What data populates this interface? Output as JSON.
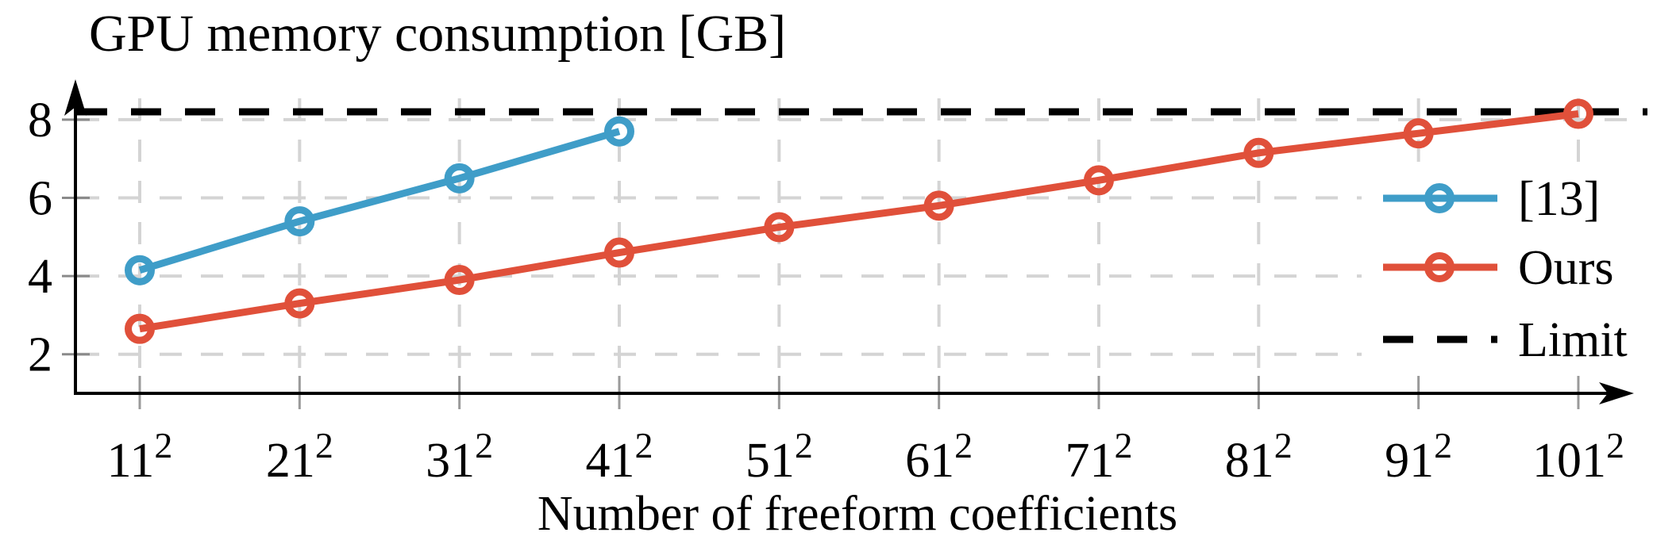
{
  "chart_data": {
    "type": "line",
    "title": "GPU memory consumption [GB]",
    "xlabel": "Number of freeform coefficients",
    "ylabel": "",
    "categories": [
      "11²",
      "21²",
      "31²",
      "41²",
      "51²",
      "61²",
      "71²",
      "81²",
      "91²",
      "101²"
    ],
    "y_ticks": [
      2,
      4,
      6,
      8
    ],
    "ylim": [
      1,
      9
    ],
    "grid": true,
    "legend_position": "inside-right",
    "series": [
      {
        "name": "[13]",
        "color": "#3f9dc8",
        "marker": "open-circle",
        "values": [
          4.15,
          5.4,
          6.5,
          7.7
        ]
      },
      {
        "name": "Ours",
        "color": "#e0503a",
        "marker": "open-circle",
        "values": [
          2.65,
          3.3,
          3.9,
          4.6,
          5.25,
          5.8,
          6.45,
          7.15,
          7.65,
          8.15
        ]
      }
    ],
    "limit_line": {
      "name": "Limit",
      "value": 8.2,
      "color": "#000000",
      "style": "dashed"
    }
  },
  "colors": {
    "background": "#ffffff",
    "grid": "#d4d4d4",
    "axis": "#000000",
    "x_tick": "#9a9a9a",
    "y_tick": "#8a8a8a",
    "blue_series": "#3f9dc8",
    "red_series": "#e0503a"
  }
}
